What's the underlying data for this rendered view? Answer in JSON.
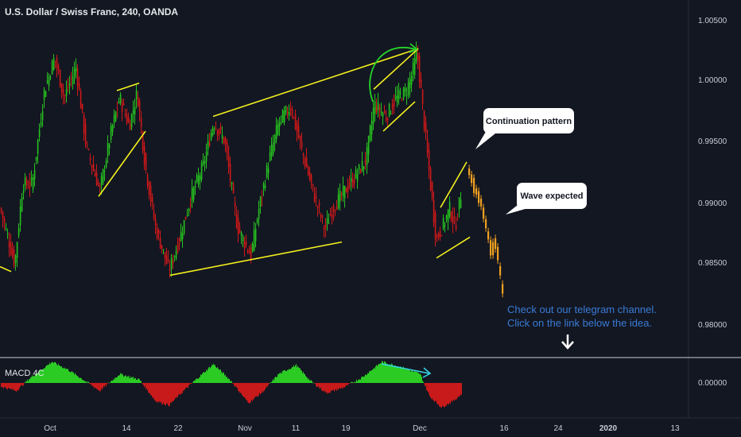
{
  "header": {
    "title": "U.S. Dollar / Swiss Franc, 240, OANDA"
  },
  "colors": {
    "background": "#131722",
    "up": "#26c21f",
    "down": "#d01818",
    "projection": "#f0a020",
    "trendline": "#f4f01e",
    "annotation_text": "#3a7bd5",
    "macd_up": "#2bcb24",
    "macd_down": "#c81a1a",
    "arrow_cyan": "#36d6e6",
    "arc_green": "#27d32a",
    "axis_text": "#c8ccd4"
  },
  "price_axis": {
    "ticks": [
      "1.00500",
      "1.00000",
      "0.99500",
      "0.99000",
      "0.98500",
      "0.98000"
    ]
  },
  "macd": {
    "label": "MACD 4C",
    "ticks": [
      "0.00000"
    ]
  },
  "time_axis": {
    "ticks": [
      "Oct",
      "14",
      "22",
      "Nov",
      "11",
      "19",
      "Dec",
      "16",
      "24",
      "2020",
      "13"
    ]
  },
  "annotations": {
    "continuation": "Continuation pattern",
    "wave": "Wave expected",
    "telegram_line1": "Check out our telegram channel.",
    "telegram_line2": "Click on the link below the idea."
  },
  "chart_data": {
    "type": "candlestick",
    "title": "U.S. Dollar / Swiss Franc, 240, OANDA",
    "ylim": [
      0.978,
      1.0065
    ],
    "y_ticks": [
      1.005,
      1.0,
      0.995,
      0.99,
      0.985,
      0.98
    ],
    "x_ticks": [
      "Oct",
      "14",
      "22",
      "Nov",
      "11",
      "19",
      "Dec",
      "16",
      "24",
      "2020",
      "13"
    ],
    "price_path": [
      {
        "t": 0,
        "p": 0.9895
      },
      {
        "t": 8,
        "p": 0.9875
      },
      {
        "t": 18,
        "p": 0.985
      },
      {
        "t": 28,
        "p": 0.9915
      },
      {
        "t": 40,
        "p": 0.9915
      },
      {
        "t": 55,
        "p": 0.999
      },
      {
        "t": 68,
        "p": 1.0018
      },
      {
        "t": 80,
        "p": 0.9985
      },
      {
        "t": 95,
        "p": 1.001
      },
      {
        "t": 108,
        "p": 0.9945
      },
      {
        "t": 125,
        "p": 0.991
      },
      {
        "t": 140,
        "p": 0.996
      },
      {
        "t": 150,
        "p": 0.9985
      },
      {
        "t": 162,
        "p": 0.9962
      },
      {
        "t": 172,
        "p": 0.999
      },
      {
        "t": 182,
        "p": 0.993
      },
      {
        "t": 195,
        "p": 0.988
      },
      {
        "t": 212,
        "p": 0.9845
      },
      {
        "t": 225,
        "p": 0.987
      },
      {
        "t": 240,
        "p": 0.9905
      },
      {
        "t": 255,
        "p": 0.993
      },
      {
        "t": 268,
        "p": 0.9965
      },
      {
        "t": 282,
        "p": 0.995
      },
      {
        "t": 298,
        "p": 0.988
      },
      {
        "t": 315,
        "p": 0.9857
      },
      {
        "t": 325,
        "p": 0.9895
      },
      {
        "t": 338,
        "p": 0.9935
      },
      {
        "t": 350,
        "p": 0.9965
      },
      {
        "t": 365,
        "p": 0.9978
      },
      {
        "t": 380,
        "p": 0.994
      },
      {
        "t": 395,
        "p": 0.9905
      },
      {
        "t": 408,
        "p": 0.9878
      },
      {
        "t": 418,
        "p": 0.9895
      },
      {
        "t": 428,
        "p": 0.9905
      },
      {
        "t": 445,
        "p": 0.992
      },
      {
        "t": 460,
        "p": 0.9935
      },
      {
        "t": 470,
        "p": 0.998
      },
      {
        "t": 485,
        "p": 0.997
      },
      {
        "t": 498,
        "p": 0.9985
      },
      {
        "t": 510,
        "p": 0.999
      },
      {
        "t": 518,
        "p": 1.0005
      },
      {
        "t": 524,
        "p": 1.0023
      },
      {
        "t": 532,
        "p": 0.997
      },
      {
        "t": 540,
        "p": 0.992
      },
      {
        "t": 548,
        "p": 0.987
      },
      {
        "t": 556,
        "p": 0.988
      },
      {
        "t": 565,
        "p": 0.9895
      },
      {
        "t": 572,
        "p": 0.988
      },
      {
        "t": 580,
        "p": 0.991
      }
    ],
    "projection": [
      {
        "t": 590,
        "p": 0.9925
      },
      {
        "t": 597,
        "p": 0.9912
      },
      {
        "t": 605,
        "p": 0.99
      },
      {
        "t": 612,
        "p": 0.988
      },
      {
        "t": 618,
        "p": 0.986
      },
      {
        "t": 624,
        "p": 0.9868
      },
      {
        "t": 630,
        "p": 0.984
      },
      {
        "t": 633,
        "p": 0.9825
      }
    ],
    "trendlines": [
      {
        "t1": 0,
        "p1": 0.9848,
        "t2": 14,
        "p2": 0.9844
      },
      {
        "t1": 124,
        "p1": 0.9905,
        "t2": 183,
        "p2": 0.9958
      },
      {
        "t1": 147,
        "p1": 0.9991,
        "t2": 175,
        "p2": 0.9997
      },
      {
        "t1": 214,
        "p1": 0.9841,
        "t2": 430,
        "p2": 0.9868
      },
      {
        "t1": 268,
        "p1": 0.997,
        "t2": 526,
        "p2": 1.0025
      },
      {
        "t1": 470,
        "p1": 0.9992,
        "t2": 526,
        "p2": 1.0025
      },
      {
        "t1": 482,
        "p1": 0.9958,
        "t2": 522,
        "p2": 0.9982
      },
      {
        "t1": 549,
        "p1": 0.9855,
        "t2": 591,
        "p2": 0.9872
      },
      {
        "t1": 554,
        "p1": 0.9896,
        "t2": 587,
        "p2": 0.9933
      }
    ],
    "macd_hist": [
      {
        "t": 0,
        "v": -0.15
      },
      {
        "t": 20,
        "v": -0.35
      },
      {
        "t": 40,
        "v": 0.3
      },
      {
        "t": 65,
        "v": 0.95
      },
      {
        "t": 85,
        "v": 0.6
      },
      {
        "t": 100,
        "v": 0.25
      },
      {
        "t": 125,
        "v": -0.35
      },
      {
        "t": 150,
        "v": 0.4
      },
      {
        "t": 175,
        "v": 0.15
      },
      {
        "t": 195,
        "v": -0.8
      },
      {
        "t": 212,
        "v": -1.0
      },
      {
        "t": 235,
        "v": -0.2
      },
      {
        "t": 268,
        "v": 0.85
      },
      {
        "t": 290,
        "v": 0.1
      },
      {
        "t": 312,
        "v": -0.9
      },
      {
        "t": 330,
        "v": -0.4
      },
      {
        "t": 350,
        "v": 0.4
      },
      {
        "t": 372,
        "v": 0.8
      },
      {
        "t": 390,
        "v": 0.1
      },
      {
        "t": 410,
        "v": -0.45
      },
      {
        "t": 432,
        "v": -0.2
      },
      {
        "t": 455,
        "v": 0.25
      },
      {
        "t": 480,
        "v": 0.95
      },
      {
        "t": 505,
        "v": 0.7
      },
      {
        "t": 528,
        "v": 0.4
      },
      {
        "t": 540,
        "v": -0.6
      },
      {
        "t": 555,
        "v": -1.1
      },
      {
        "t": 570,
        "v": -0.8
      },
      {
        "t": 580,
        "v": -0.5
      }
    ]
  }
}
